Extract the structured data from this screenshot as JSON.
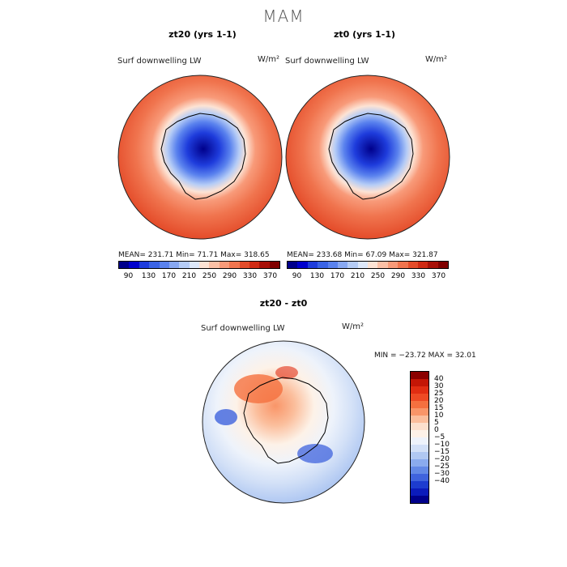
{
  "title": "MAM",
  "panel_left": {
    "title": "zt20 (yrs 1-1)",
    "variable": "Surf downwelling LW",
    "units": "W/m²",
    "stats": "MEAN= 231.71  Min=  71.71  Max= 318.65"
  },
  "panel_right": {
    "title": "zt0 (yrs 1-1)",
    "variable": "Surf downwelling LW",
    "units": "W/m²",
    "stats": "MEAN= 233.68  Min=  67.09  Max= 321.87"
  },
  "panel_diff": {
    "title": "zt20 - zt0",
    "variable": "Surf downwelling LW",
    "units": "W/m²",
    "stats": "MIN = −23.72 MAX =  32.01"
  },
  "abs_colorbar": {
    "colors": [
      "#00008b",
      "#0000cd",
      "#1e3cdc",
      "#3a63e6",
      "#5a82ee",
      "#88a8f2",
      "#b5ccf6",
      "#dde8fa",
      "#fde3d4",
      "#fcc0a6",
      "#f89a79",
      "#f0744e",
      "#e44c2a",
      "#d02a14",
      "#a81008",
      "#800000"
    ],
    "tick_labels": [
      "90",
      "130",
      "170",
      "210",
      "250",
      "290",
      "330",
      "370"
    ]
  },
  "diff_colorbar": {
    "colors": [
      "#8b0000",
      "#c41606",
      "#e12d12",
      "#ee4a24",
      "#f5703f",
      "#f99568",
      "#fbbe9c",
      "#fce0cd",
      "#fdf2e8",
      "#eef3fb",
      "#d2e0f7",
      "#b0c8f2",
      "#8aabee",
      "#6389e6",
      "#3f63dd",
      "#1d3ccf",
      "#0b1bbb",
      "#00008b"
    ],
    "labels": [
      "40",
      "30",
      "25",
      "20",
      "15",
      "10",
      "5",
      "0",
      "−5",
      "−10",
      "−15",
      "−20",
      "−25",
      "−30",
      "−40"
    ]
  }
}
